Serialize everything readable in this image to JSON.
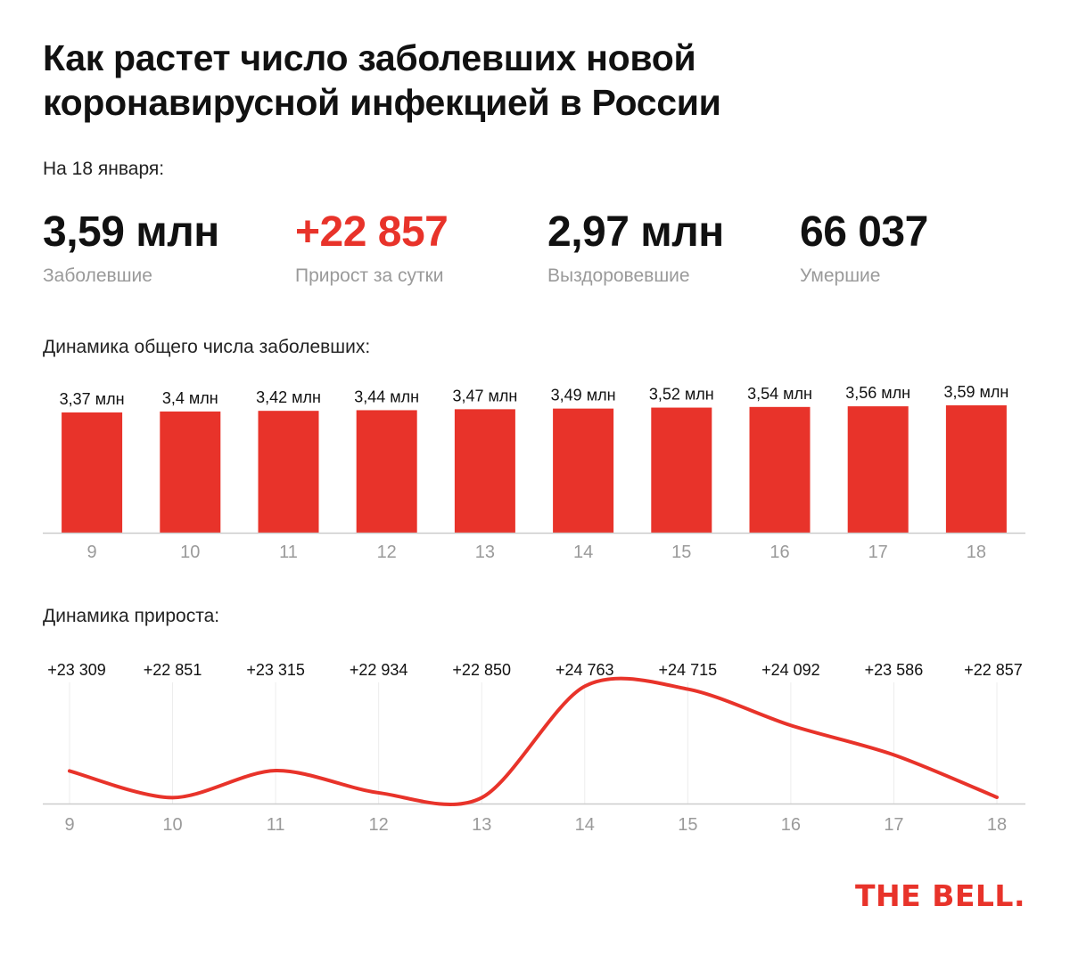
{
  "title_line1": "Как растет число заболевших новой",
  "title_line2": "коронавирусной инфекцией в России",
  "as_of": "На 18 января:",
  "stats": [
    {
      "value": "3,59 млн",
      "label": "Заболевшие"
    },
    {
      "value": "+22 857",
      "label": "Прирост за сутки"
    },
    {
      "value": "2,97 млн",
      "label": "Выздоровевшие"
    },
    {
      "value": "66 037",
      "label": "Умершие"
    }
  ],
  "bar_section_label": "Динамика общего числа заболевших:",
  "line_section_label": "Динамика прироста:",
  "logo": "THE BELL.",
  "colors": {
    "accent": "#e8332a",
    "axis": "#cccccc",
    "tick": "#9a9a9a",
    "grid": "#ececec"
  },
  "chart_data": [
    {
      "type": "bar",
      "categories": [
        "9",
        "10",
        "11",
        "12",
        "13",
        "14",
        "15",
        "16",
        "17",
        "18"
      ],
      "values": [
        3.37,
        3.4,
        3.42,
        3.44,
        3.47,
        3.49,
        3.52,
        3.54,
        3.56,
        3.59
      ],
      "value_labels": [
        "3,37 млн",
        "3,4 млн",
        "3,42 млн",
        "3,44 млн",
        "3,47 млн",
        "3,49 млн",
        "3,52 млн",
        "3,54 млн",
        "3,56 млн",
        "3,59 млн"
      ],
      "title": "Динамика общего числа заболевших:",
      "xlabel": "",
      "ylabel": "",
      "ylim": [
        0,
        3.59
      ],
      "grid": false
    },
    {
      "type": "line",
      "x": [
        "9",
        "10",
        "11",
        "12",
        "13",
        "14",
        "15",
        "16",
        "17",
        "18"
      ],
      "values": [
        23309,
        22851,
        23315,
        22934,
        22850,
        24763,
        24715,
        24092,
        23586,
        22857
      ],
      "value_labels": [
        "+23 309",
        "+22 851",
        "+23 315",
        "+22 934",
        "+22 850",
        "+24 763",
        "+24 715",
        "+24 092",
        "+23 586",
        "+22 857"
      ],
      "title": "Динамика прироста:",
      "xlabel": "",
      "ylabel": "",
      "ylim": [
        22780,
        24800
      ],
      "grid": true
    }
  ]
}
